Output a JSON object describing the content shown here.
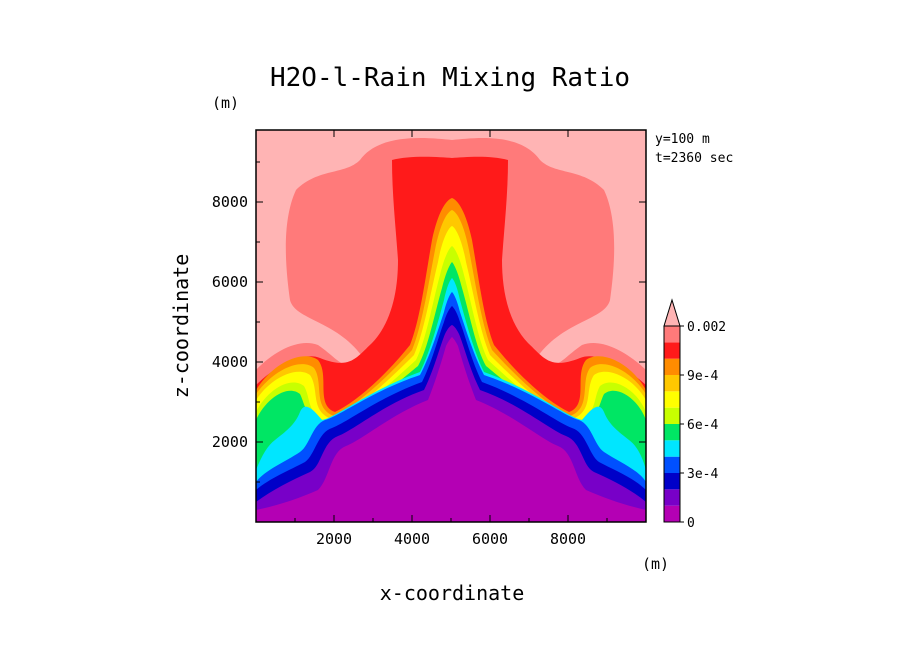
{
  "chart_data": {
    "type": "heatmap",
    "title": "H2O-l-Rain Mixing Ratio",
    "xlabel": "x-coordinate",
    "ylabel": "z-coordinate",
    "x_unit": "(m)",
    "y_unit": "(m)",
    "annotations": [
      "y=100 m",
      "t=2360 sec"
    ],
    "xlim": [
      0,
      10000
    ],
    "ylim": [
      0,
      9800
    ],
    "x_ticks": [
      2000,
      4000,
      6000,
      8000
    ],
    "y_ticks": [
      2000,
      4000,
      6000,
      8000
    ],
    "x_tick_labels": [
      "2000",
      "4000",
      "6000",
      "8000"
    ],
    "y_tick_labels": [
      "2000",
      "4000",
      "6000",
      "8000"
    ],
    "colorbar": {
      "levels": [
        "0",
        "1e-4",
        "2e-4",
        "3e-4",
        "4e-4",
        "5e-4",
        "6e-4",
        "7e-4",
        "8e-4",
        "9e-4",
        "0.001",
        "0.002"
      ],
      "labels": [
        "0",
        "3e-4",
        "6e-4",
        "9e-4",
        "0.002"
      ],
      "colors": [
        "#b400b4",
        "#7800c8",
        "#0000c8",
        "#0050ff",
        "#00e6ff",
        "#00e664",
        "#c8ff00",
        "#ffff00",
        "#ffc800",
        "#ff8c00",
        "#ff1a1a",
        "#ff7a7a",
        "#ffb4b4"
      ],
      "extend": "max"
    },
    "contour_bands": [
      {
        "level": "0.002",
        "color": "#ffb4b4"
      },
      {
        "level": "0.001",
        "color": "#ff7a7a"
      },
      {
        "level": "9e-4",
        "color": "#ff1a1a"
      },
      {
        "level": "8e-4",
        "color": "#ff8c00"
      },
      {
        "level": "7e-4",
        "color": "#ffc800"
      },
      {
        "level": "6e-4",
        "color": "#ffff00"
      },
      {
        "level": "5e-4",
        "color": "#c8ff00"
      },
      {
        "level": "4e-4",
        "color": "#00e664"
      },
      {
        "level": "3e-4",
        "color": "#00e6ff"
      },
      {
        "level": "2e-4",
        "color": "#0050ff"
      },
      {
        "level": "1e-4",
        "color": "#0000c8"
      },
      {
        "level": "0",
        "color": "#7800c8"
      }
    ]
  }
}
